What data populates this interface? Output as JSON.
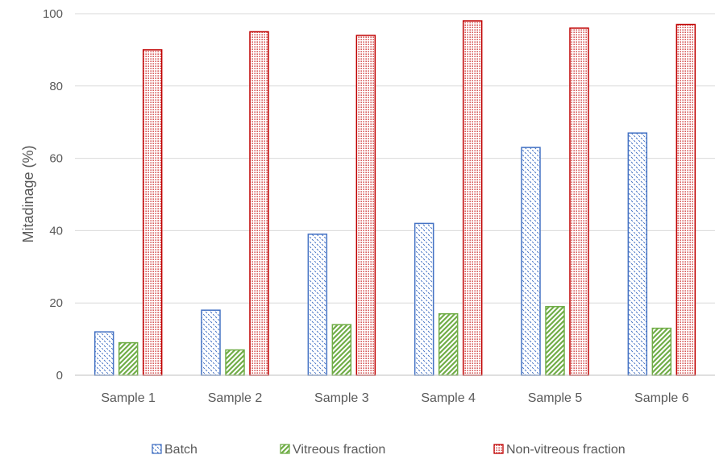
{
  "chart_data": {
    "type": "bar",
    "title": "",
    "xlabel": "",
    "ylabel": "Mitadinage (%)",
    "ylim": [
      0,
      100
    ],
    "yticks": [
      0,
      20,
      40,
      60,
      80,
      100
    ],
    "grid": true,
    "legend_position": "bottom",
    "categories": [
      "Sample 1",
      "Sample 2",
      "Sample 3",
      "Sample 4",
      "Sample 5",
      "Sample 6"
    ],
    "series": [
      {
        "name": "Batch",
        "values": [
          12,
          18,
          39,
          42,
          63,
          67
        ],
        "color": "#4472c4"
      },
      {
        "name": "Vitreous fraction",
        "values": [
          9,
          7,
          14,
          17,
          19,
          13
        ],
        "color": "#70ad47"
      },
      {
        "name": "Non-vitreous fraction",
        "values": [
          90,
          95,
          94,
          98,
          96,
          97
        ],
        "color": "#c00000"
      }
    ]
  }
}
